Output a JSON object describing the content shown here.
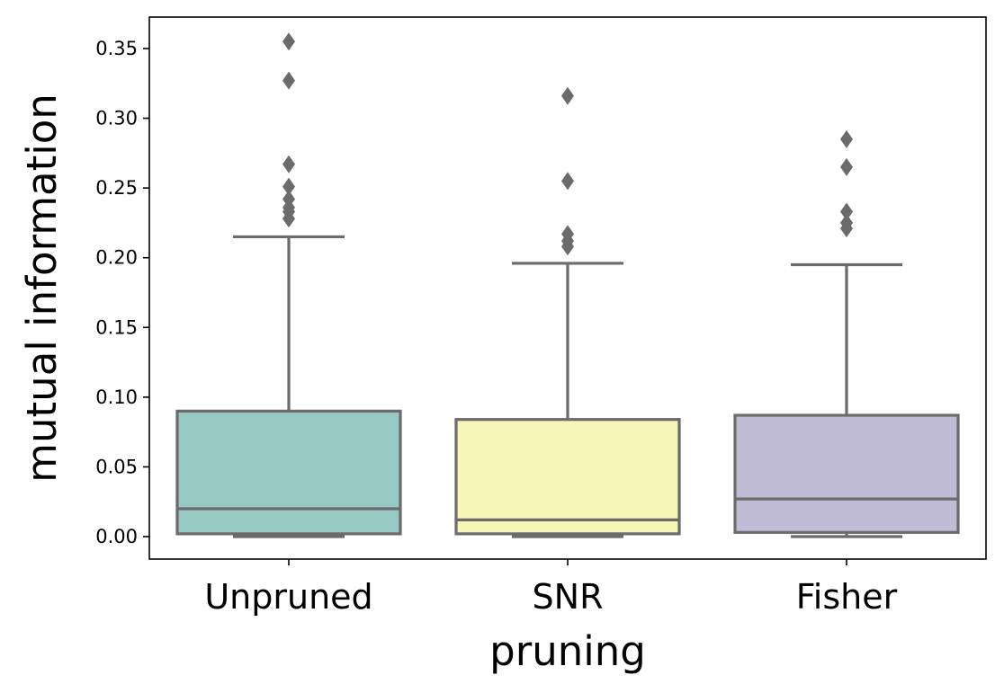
{
  "chart_data": {
    "type": "box",
    "xlabel": "pruning",
    "ylabel": "mutual information",
    "ylim": [
      -0.017,
      0.372
    ],
    "yticks": [
      "0.00",
      "0.05",
      "0.10",
      "0.15",
      "0.20",
      "0.25",
      "0.30",
      "0.35"
    ],
    "categories": [
      "Unpruned",
      "SNR",
      "Fisher"
    ],
    "series": [
      {
        "category": "Unpruned",
        "color": "#96c9c2",
        "whisker_low": 0.0,
        "q1": 0.002,
        "median": 0.02,
        "q3": 0.09,
        "whisker_high": 0.215,
        "outliers": [
          0.355,
          0.327,
          0.267,
          0.251,
          0.242,
          0.236,
          0.233,
          0.228
        ]
      },
      {
        "category": "SNR",
        "color": "#f6f6b9",
        "whisker_low": 0.0,
        "q1": 0.002,
        "median": 0.012,
        "q3": 0.084,
        "whisker_high": 0.196,
        "outliers": [
          0.316,
          0.255,
          0.217,
          0.212,
          0.208
        ]
      },
      {
        "category": "Fisher",
        "color": "#c1bcd5",
        "whisker_low": 0.0,
        "q1": 0.003,
        "median": 0.027,
        "q3": 0.087,
        "whisker_high": 0.195,
        "outliers": [
          0.285,
          0.265,
          0.233,
          0.225,
          0.221
        ]
      }
    ],
    "grid": false,
    "line_color": "#6b6b6b"
  }
}
